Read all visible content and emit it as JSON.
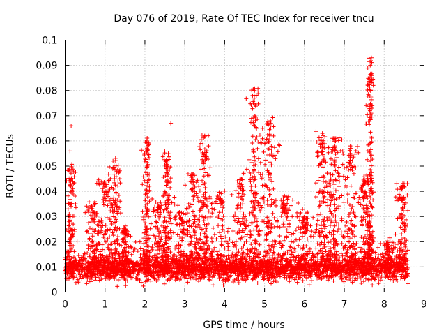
{
  "chart_data": {
    "type": "scatter",
    "title": "Day 076 of 2019, Rate Of TEC Index for receiver tncu",
    "xlabel": "GPS time / hours",
    "ylabel": "ROTI / TECUs",
    "xlim": [
      0,
      9
    ],
    "ylim": [
      0,
      0.1
    ],
    "xticks": [
      "0",
      "1",
      "2",
      "3",
      "4",
      "5",
      "6",
      "7",
      "8",
      "9"
    ],
    "yticks": [
      "0",
      "0.01",
      "0.02",
      "0.03",
      "0.04",
      "0.05",
      "0.06",
      "0.07",
      "0.08",
      "0.09",
      "0.1"
    ],
    "grid": true,
    "marker": "+",
    "color": "#ff0000",
    "data_range_hours": [
      0,
      8.6
    ],
    "baseline_roti": 0.009,
    "notable_points": [
      {
        "x": 0.15,
        "y": 0.066
      },
      {
        "x": 0.12,
        "y": 0.056
      },
      {
        "x": 1.2,
        "y": 0.052
      },
      {
        "x": 2.05,
        "y": 0.06
      },
      {
        "x": 2.65,
        "y": 0.067
      },
      {
        "x": 3.5,
        "y": 0.062
      },
      {
        "x": 4.75,
        "y": 0.08
      },
      {
        "x": 4.7,
        "y": 0.078
      },
      {
        "x": 4.95,
        "y": 0.065
      },
      {
        "x": 5.15,
        "y": 0.068
      },
      {
        "x": 6.45,
        "y": 0.063
      },
      {
        "x": 6.7,
        "y": 0.061
      },
      {
        "x": 7.15,
        "y": 0.058
      },
      {
        "x": 7.62,
        "y": 0.083
      },
      {
        "x": 7.68,
        "y": 0.093
      },
      {
        "x": 7.65,
        "y": 0.09
      },
      {
        "x": 7.7,
        "y": 0.074
      },
      {
        "x": 8.5,
        "y": 0.043
      }
    ],
    "clusters": [
      {
        "x": 0.15,
        "spread": 0.12,
        "peak": 0.05
      },
      {
        "x": 0.7,
        "spread": 0.2,
        "peak": 0.035
      },
      {
        "x": 1.0,
        "spread": 0.25,
        "peak": 0.045
      },
      {
        "x": 1.25,
        "spread": 0.15,
        "peak": 0.052
      },
      {
        "x": 1.5,
        "spread": 0.1,
        "peak": 0.027
      },
      {
        "x": 2.05,
        "spread": 0.1,
        "peak": 0.06
      },
      {
        "x": 2.35,
        "spread": 0.2,
        "peak": 0.035
      },
      {
        "x": 2.55,
        "spread": 0.1,
        "peak": 0.055
      },
      {
        "x": 2.9,
        "spread": 0.2,
        "peak": 0.033
      },
      {
        "x": 3.2,
        "spread": 0.2,
        "peak": 0.047
      },
      {
        "x": 3.5,
        "spread": 0.15,
        "peak": 0.062
      },
      {
        "x": 3.9,
        "spread": 0.3,
        "peak": 0.04
      },
      {
        "x": 4.4,
        "spread": 0.2,
        "peak": 0.045
      },
      {
        "x": 4.75,
        "spread": 0.15,
        "peak": 0.08
      },
      {
        "x": 5.1,
        "spread": 0.2,
        "peak": 0.068
      },
      {
        "x": 5.5,
        "spread": 0.3,
        "peak": 0.038
      },
      {
        "x": 6.0,
        "spread": 0.25,
        "peak": 0.03
      },
      {
        "x": 6.45,
        "spread": 0.2,
        "peak": 0.063
      },
      {
        "x": 6.75,
        "spread": 0.2,
        "peak": 0.061
      },
      {
        "x": 7.15,
        "spread": 0.2,
        "peak": 0.058
      },
      {
        "x": 7.5,
        "spread": 0.15,
        "peak": 0.045
      },
      {
        "x": 7.65,
        "spread": 0.08,
        "peak": 0.093
      },
      {
        "x": 8.1,
        "spread": 0.2,
        "peak": 0.02
      },
      {
        "x": 8.45,
        "spread": 0.15,
        "peak": 0.043
      }
    ]
  }
}
